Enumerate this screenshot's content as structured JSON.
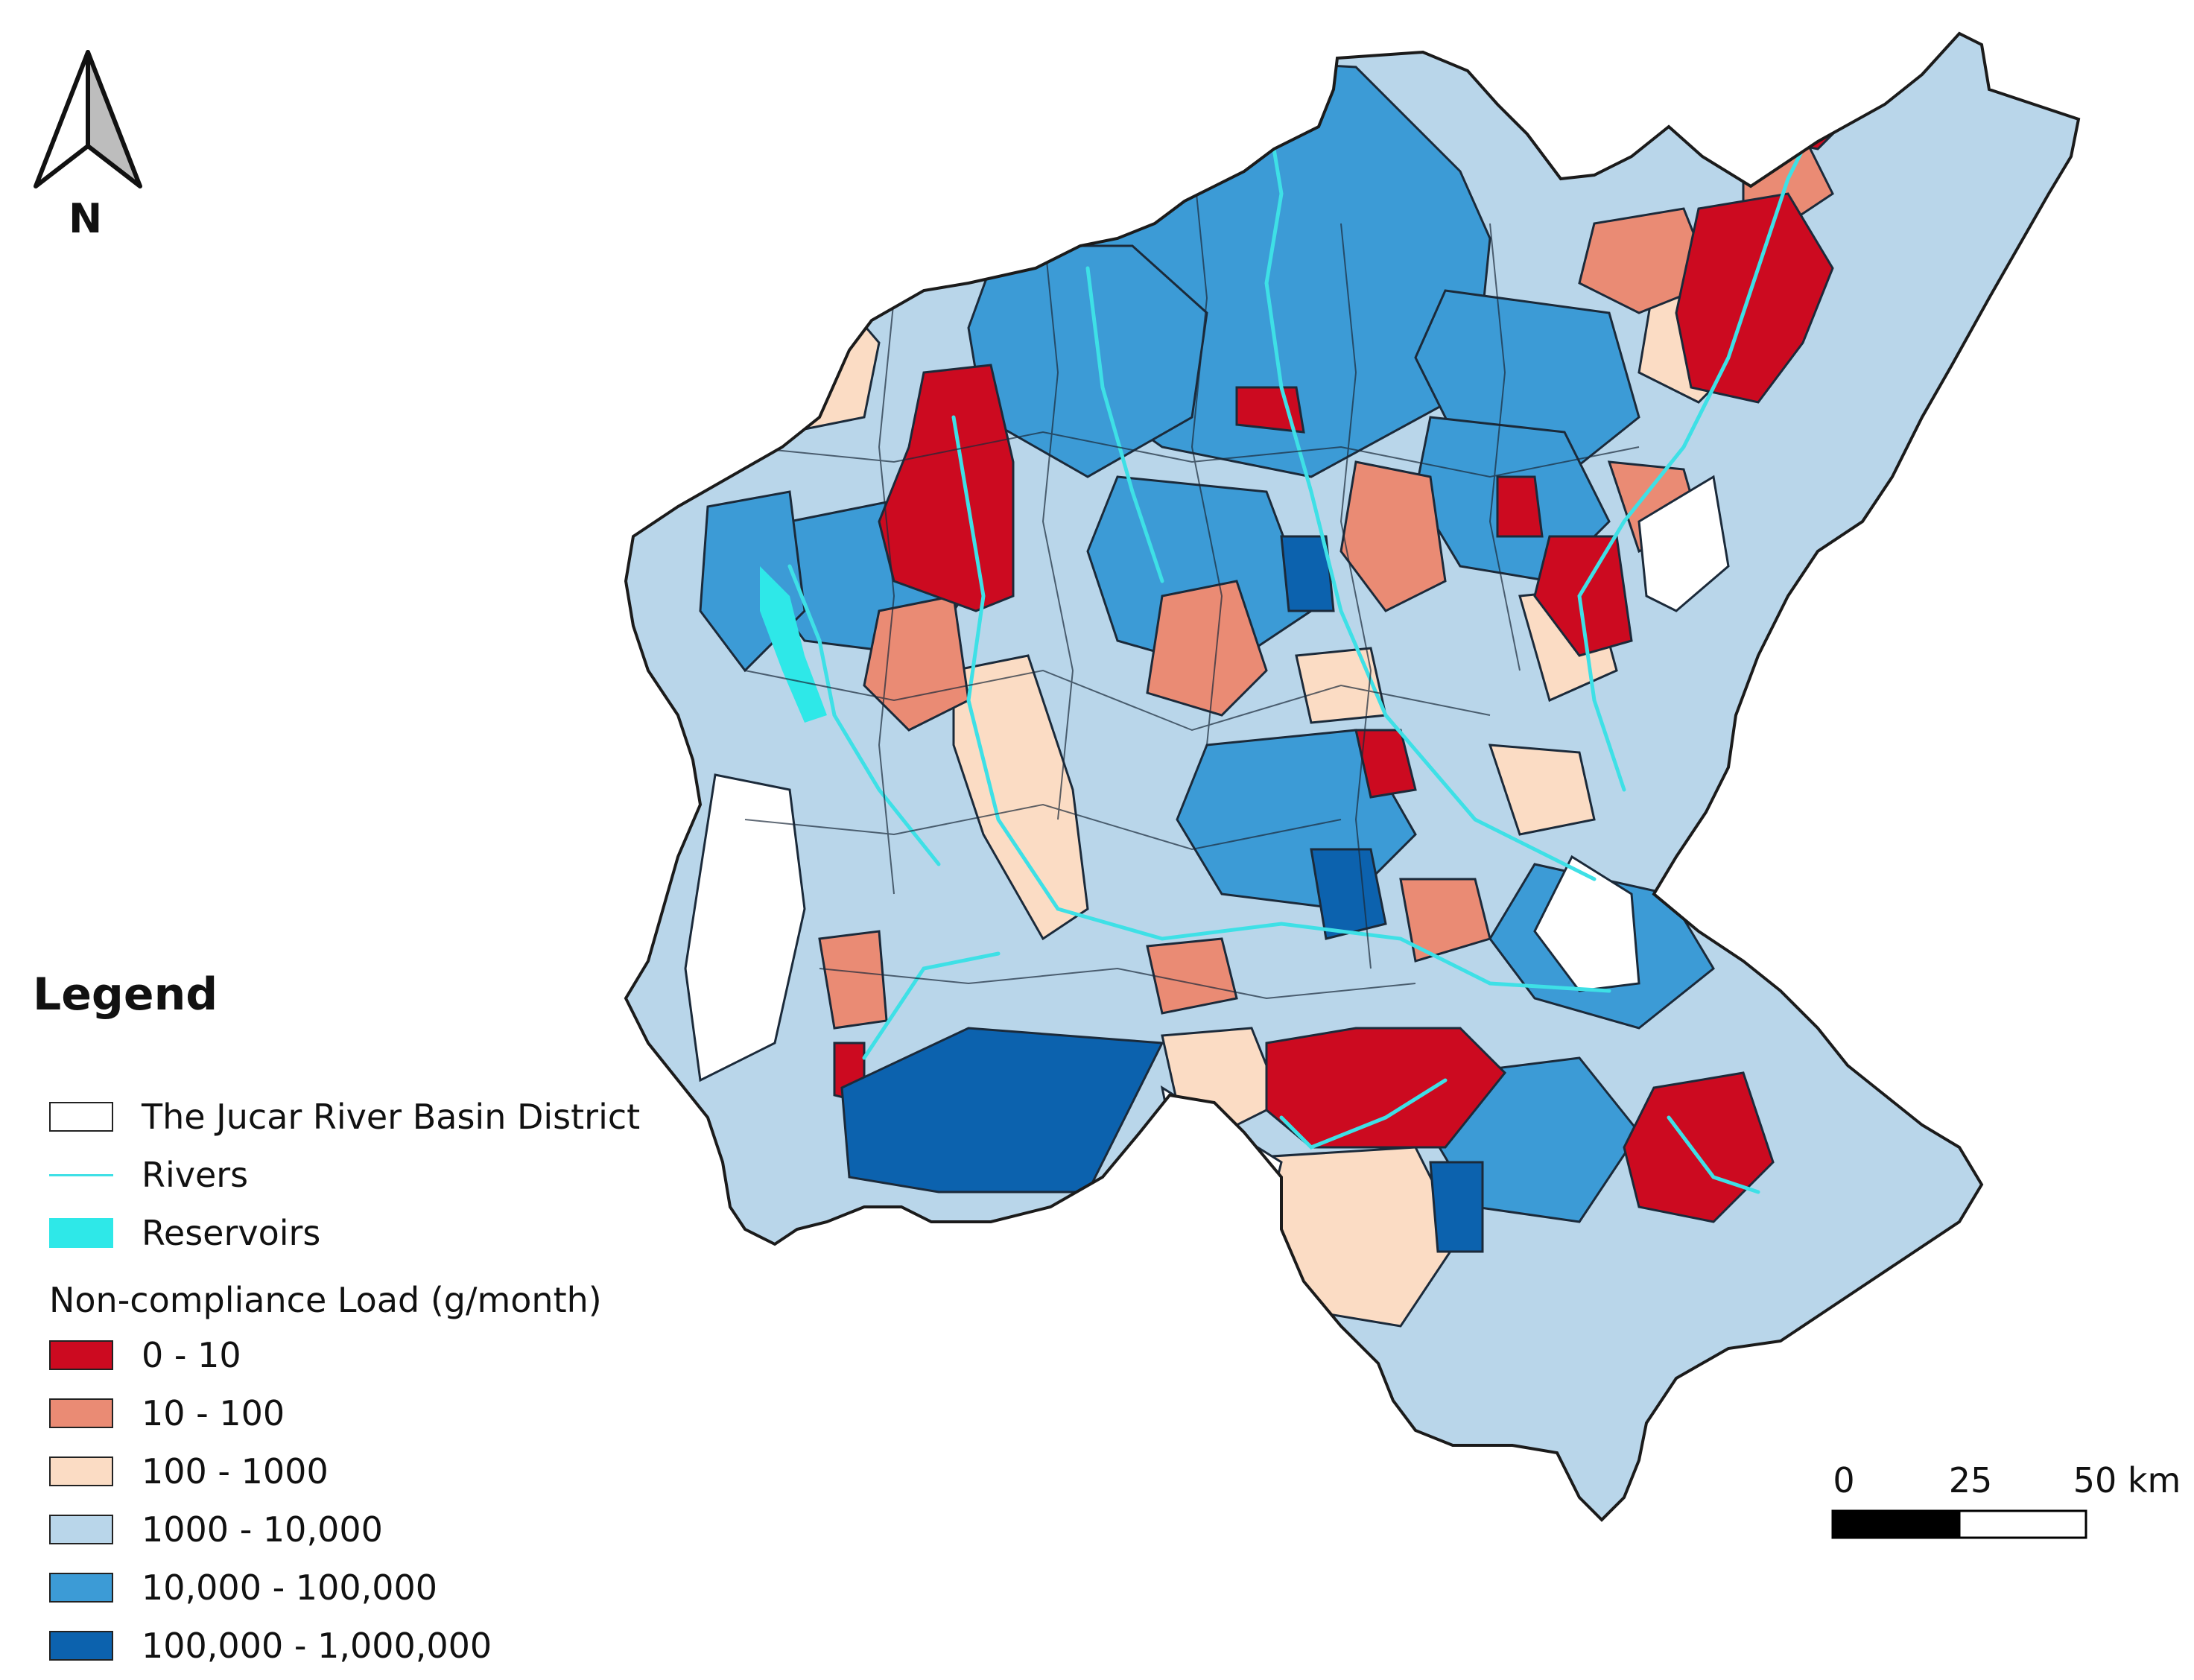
{
  "north_arrow": {
    "label": "N"
  },
  "legend": {
    "title": "Legend",
    "items": [
      {
        "label": "The Jucar River Basin District",
        "kind": "polygon",
        "fill": "#ffffff",
        "stroke": "#222222"
      },
      {
        "label": "Rivers",
        "kind": "line",
        "color": "#3ee0e6"
      },
      {
        "label": "Reservoirs",
        "kind": "polygon",
        "fill": "#2ee8e8",
        "stroke": "#2ee8e8"
      }
    ],
    "class_title": "Non-compliance Load (g/month)",
    "classes": [
      {
        "label": "0 - 10",
        "color": "#cc0a20"
      },
      {
        "label": "10 - 100",
        "color": "#ea8b74"
      },
      {
        "label": "100 - 1000",
        "color": "#fbdcc4"
      },
      {
        "label": "1000 - 10,000",
        "color": "#b9d6ea"
      },
      {
        "label": "10,000 - 100,000",
        "color": "#3c9bd6"
      },
      {
        "label": "100,000 - 1,000,000",
        "color": "#0c62ae"
      }
    ]
  },
  "scale_bar": {
    "labels": [
      "0",
      "25",
      "50 km"
    ]
  }
}
